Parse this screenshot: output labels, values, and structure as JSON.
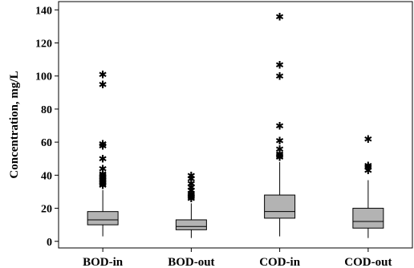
{
  "chart_data": {
    "type": "boxplot",
    "ylabel": "Concentration, mg/L",
    "xlabel": "",
    "ylim": [
      -4,
      145
    ],
    "yticks": [
      0,
      20,
      40,
      60,
      80,
      100,
      120,
      140
    ],
    "grid": false,
    "legend": "none",
    "box_color": "#b3b3b3",
    "categories": [
      "BOD-in",
      "BOD-out",
      "COD-in",
      "COD-out"
    ],
    "boxes": [
      {
        "name": "BOD-in",
        "whisker_low": 3,
        "q1": 10,
        "median": 13,
        "q3": 18,
        "whisker_high": 31,
        "outliers": [
          101,
          95,
          59,
          58,
          50,
          44,
          41,
          40,
          39,
          38,
          37,
          36,
          35,
          34
        ]
      },
      {
        "name": "BOD-out",
        "whisker_low": 2,
        "q1": 7,
        "median": 9,
        "q3": 13,
        "whisker_high": 23,
        "outliers": [
          40,
          38,
          35,
          33,
          31,
          29,
          28,
          27,
          26
        ]
      },
      {
        "name": "COD-in",
        "whisker_low": 3,
        "q1": 14,
        "median": 18,
        "q3": 28,
        "whisker_high": 48,
        "outliers": [
          136,
          107,
          100,
          70,
          61,
          56,
          53,
          52,
          51
        ]
      },
      {
        "name": "COD-out",
        "whisker_low": 2,
        "q1": 8,
        "median": 12,
        "q3": 20,
        "whisker_high": 37,
        "outliers": [
          62,
          46,
          45,
          43
        ]
      }
    ]
  }
}
